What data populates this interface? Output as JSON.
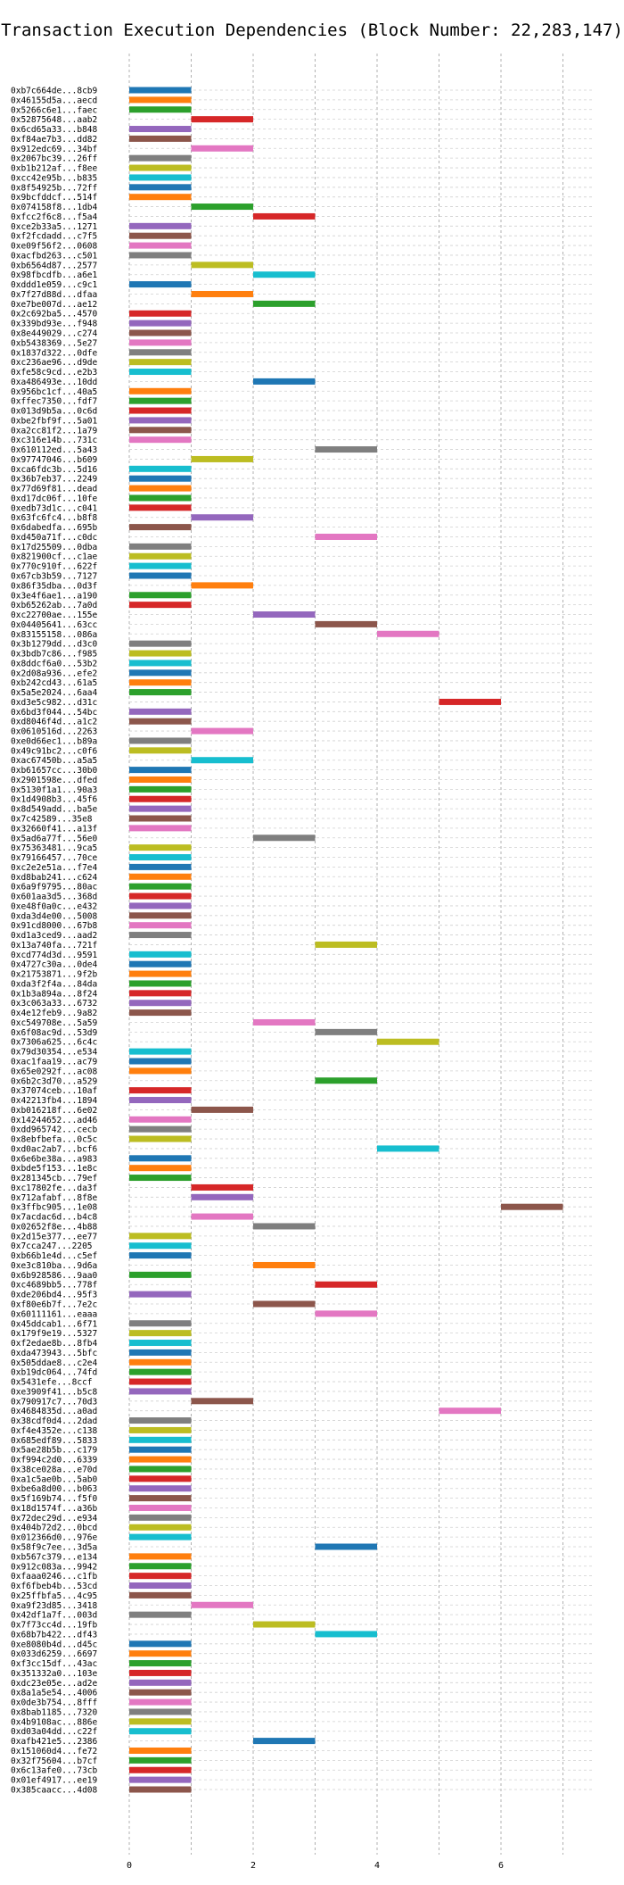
{
  "chart_data": {
    "type": "bar",
    "orientation": "horizontal",
    "title": "Transaction Execution Dependencies (Block Number: 22,283,147)",
    "xlabel": "",
    "ylabel": "",
    "xlim": [
      0,
      7.5
    ],
    "xticks": [
      0,
      2,
      4,
      6
    ],
    "grid": true,
    "colors": [
      "#1f77b4",
      "#ff7f0e",
      "#2ca02c",
      "#d62728",
      "#9467bd",
      "#8c564b",
      "#e377c2",
      "#7f7f7f",
      "#bcbd22",
      "#17becf"
    ],
    "transactions": [
      {
        "label": "0xb7c664de...8cb9",
        "start": 0,
        "end": 1
      },
      {
        "label": "0x46155d5a...aecd",
        "start": 0,
        "end": 1
      },
      {
        "label": "0x5266c6e1...faec",
        "start": 0,
        "end": 1
      },
      {
        "label": "0x52875648...aab2",
        "start": 1,
        "end": 2
      },
      {
        "label": "0x6cd65a33...b848",
        "start": 0,
        "end": 1
      },
      {
        "label": "0xf84ae7b3...dd82",
        "start": 0,
        "end": 1
      },
      {
        "label": "0x912edc69...34bf",
        "start": 1,
        "end": 2
      },
      {
        "label": "0x2067bc39...26ff",
        "start": 0,
        "end": 1
      },
      {
        "label": "0xb1b212af...f8ee",
        "start": 0,
        "end": 1
      },
      {
        "label": "0xcc42e95b...b835",
        "start": 0,
        "end": 1
      },
      {
        "label": "0x8f54925b...72ff",
        "start": 0,
        "end": 1
      },
      {
        "label": "0x9bcfddcf...514f",
        "start": 0,
        "end": 1
      },
      {
        "label": "0x074158f8...1db4",
        "start": 1,
        "end": 2
      },
      {
        "label": "0xfcc2f6c8...f5a4",
        "start": 2,
        "end": 3
      },
      {
        "label": "0xce2b33a5...1271",
        "start": 0,
        "end": 1
      },
      {
        "label": "0xf2fcdadd...c7f5",
        "start": 0,
        "end": 1
      },
      {
        "label": "0xe09f56f2...0608",
        "start": 0,
        "end": 1
      },
      {
        "label": "0xacfbd263...c501",
        "start": 0,
        "end": 1
      },
      {
        "label": "0xb6564d87...2577",
        "start": 1,
        "end": 2
      },
      {
        "label": "0x98fbcdfb...a6e1",
        "start": 2,
        "end": 3
      },
      {
        "label": "0xddd1e059...c9c1",
        "start": 0,
        "end": 1
      },
      {
        "label": "0x7f27d88d...dfaa",
        "start": 1,
        "end": 2
      },
      {
        "label": "0xe7be007d...ae12",
        "start": 2,
        "end": 3
      },
      {
        "label": "0x2c692ba5...4570",
        "start": 0,
        "end": 1
      },
      {
        "label": "0x339bd93e...f948",
        "start": 0,
        "end": 1
      },
      {
        "label": "0x8e449029...c274",
        "start": 0,
        "end": 1
      },
      {
        "label": "0xb5438369...5e27",
        "start": 0,
        "end": 1
      },
      {
        "label": "0x1837d322...0dfe",
        "start": 0,
        "end": 1
      },
      {
        "label": "0xc236ae96...d9de",
        "start": 0,
        "end": 1
      },
      {
        "label": "0xfe58c9cd...e2b3",
        "start": 0,
        "end": 1
      },
      {
        "label": "0xa486493e...10dd",
        "start": 2,
        "end": 3
      },
      {
        "label": "0x956bc1cf...40a5",
        "start": 0,
        "end": 1
      },
      {
        "label": "0xffec7350...fdf7",
        "start": 0,
        "end": 1
      },
      {
        "label": "0x013d9b5a...0c6d",
        "start": 0,
        "end": 1
      },
      {
        "label": "0xbe2fbf9f...5a01",
        "start": 0,
        "end": 1
      },
      {
        "label": "0xa2cc81f2...1a79",
        "start": 0,
        "end": 1
      },
      {
        "label": "0xc316e14b...731c",
        "start": 0,
        "end": 1
      },
      {
        "label": "0x610112ed...5a43",
        "start": 3,
        "end": 4
      },
      {
        "label": "0x97747046...b609",
        "start": 1,
        "end": 2
      },
      {
        "label": "0xca6fdc3b...5d16",
        "start": 0,
        "end": 1
      },
      {
        "label": "0x36b7eb37...2249",
        "start": 0,
        "end": 1
      },
      {
        "label": "0x77d69f81...dead",
        "start": 0,
        "end": 1
      },
      {
        "label": "0xd17dc06f...10fe",
        "start": 0,
        "end": 1
      },
      {
        "label": "0xedb73d1c...c041",
        "start": 0,
        "end": 1
      },
      {
        "label": "0x63fc6fc4...b8f8",
        "start": 1,
        "end": 2
      },
      {
        "label": "0x6dabedfa...695b",
        "start": 0,
        "end": 1
      },
      {
        "label": "0xd450a71f...c0dc",
        "start": 3,
        "end": 4
      },
      {
        "label": "0x17d25509...0dba",
        "start": 0,
        "end": 1
      },
      {
        "label": "0x821900cf...c1ae",
        "start": 0,
        "end": 1
      },
      {
        "label": "0x770c910f...622f",
        "start": 0,
        "end": 1
      },
      {
        "label": "0x67cb3b59...7127",
        "start": 0,
        "end": 1
      },
      {
        "label": "0x86f35dba...0d3f",
        "start": 1,
        "end": 2
      },
      {
        "label": "0x3e4f6ae1...a190",
        "start": 0,
        "end": 1
      },
      {
        "label": "0xb65262ab...7a0d",
        "start": 0,
        "end": 1
      },
      {
        "label": "0xc22700ae...155e",
        "start": 2,
        "end": 3
      },
      {
        "label": "0x04405641...63cc",
        "start": 3,
        "end": 4
      },
      {
        "label": "0x83155158...086a",
        "start": 4,
        "end": 5
      },
      {
        "label": "0x3b1279dd...d3c0",
        "start": 0,
        "end": 1
      },
      {
        "label": "0x3bdb7c86...f985",
        "start": 0,
        "end": 1
      },
      {
        "label": "0x8ddcf6a0...53b2",
        "start": 0,
        "end": 1
      },
      {
        "label": "0x2d08a936...efe2",
        "start": 0,
        "end": 1
      },
      {
        "label": "0xb242cd43...61a5",
        "start": 0,
        "end": 1
      },
      {
        "label": "0x5a5e2024...6aa4",
        "start": 0,
        "end": 1
      },
      {
        "label": "0xd3e5c982...d31c",
        "start": 5,
        "end": 6
      },
      {
        "label": "0x6bd3f044...54bc",
        "start": 0,
        "end": 1
      },
      {
        "label": "0xd8046f4d...a1c2",
        "start": 0,
        "end": 1
      },
      {
        "label": "0x0610516d...2263",
        "start": 1,
        "end": 2
      },
      {
        "label": "0xe0d66ec1...b89a",
        "start": 0,
        "end": 1
      },
      {
        "label": "0x49c91bc2...c0f6",
        "start": 0,
        "end": 1
      },
      {
        "label": "0xac67450b...a5a5",
        "start": 1,
        "end": 2
      },
      {
        "label": "0xb61657cc...30b0",
        "start": 0,
        "end": 1
      },
      {
        "label": "0x2901598e...dfed",
        "start": 0,
        "end": 1
      },
      {
        "label": "0x5130f1a1...90a3",
        "start": 0,
        "end": 1
      },
      {
        "label": "0x1d4908b3...45f6",
        "start": 0,
        "end": 1
      },
      {
        "label": "0x8d549add...ba5e",
        "start": 0,
        "end": 1
      },
      {
        "label": "0x7c42589...35e8",
        "start": 0,
        "end": 1
      },
      {
        "label": "0x32660f41...a13f",
        "start": 0,
        "end": 1
      },
      {
        "label": "0x5ad6a77f...56e0",
        "start": 2,
        "end": 3
      },
      {
        "label": "0x75363481...9ca5",
        "start": 0,
        "end": 1
      },
      {
        "label": "0x79166457...70ce",
        "start": 0,
        "end": 1
      },
      {
        "label": "0xc2e2e51a...f7e4",
        "start": 0,
        "end": 1
      },
      {
        "label": "0xd8bab241...c624",
        "start": 0,
        "end": 1
      },
      {
        "label": "0x6a9f9795...80ac",
        "start": 0,
        "end": 1
      },
      {
        "label": "0x601aa3d5...368d",
        "start": 0,
        "end": 1
      },
      {
        "label": "0xe48f0a0c...e432",
        "start": 0,
        "end": 1
      },
      {
        "label": "0xda3d4e00...5008",
        "start": 0,
        "end": 1
      },
      {
        "label": "0x91cd8000...67b8",
        "start": 0,
        "end": 1
      },
      {
        "label": "0xd1a3ced9...aad2",
        "start": 0,
        "end": 1
      },
      {
        "label": "0x13a740fa...721f",
        "start": 3,
        "end": 4
      },
      {
        "label": "0xcd774d3d...9591",
        "start": 0,
        "end": 1
      },
      {
        "label": "0x4727c30a...0de4",
        "start": 0,
        "end": 1
      },
      {
        "label": "0x21753871...9f2b",
        "start": 0,
        "end": 1
      },
      {
        "label": "0xda3f2f4a...84da",
        "start": 0,
        "end": 1
      },
      {
        "label": "0x1b3a894a...8f24",
        "start": 0,
        "end": 1
      },
      {
        "label": "0x3c063a33...6732",
        "start": 0,
        "end": 1
      },
      {
        "label": "0x4e12feb9...9a82",
        "start": 0,
        "end": 1
      },
      {
        "label": "0xc549708e...5a59",
        "start": 2,
        "end": 3
      },
      {
        "label": "0x6f08ac9d...53d9",
        "start": 3,
        "end": 4
      },
      {
        "label": "0x7306a625...6c4c",
        "start": 4,
        "end": 5
      },
      {
        "label": "0x79d30354...e534",
        "start": 0,
        "end": 1
      },
      {
        "label": "0xac1faa19...ac79",
        "start": 0,
        "end": 1
      },
      {
        "label": "0x65e0292f...ac08",
        "start": 0,
        "end": 1
      },
      {
        "label": "0x6b2c3d70...a529",
        "start": 3,
        "end": 4
      },
      {
        "label": "0x37074ceb...10af",
        "start": 0,
        "end": 1
      },
      {
        "label": "0x42213fb4...1894",
        "start": 0,
        "end": 1
      },
      {
        "label": "0xb016218f...6e02",
        "start": 1,
        "end": 2
      },
      {
        "label": "0x14244652...ad46",
        "start": 0,
        "end": 1
      },
      {
        "label": "0xdd965742...cecb",
        "start": 0,
        "end": 1
      },
      {
        "label": "0x8ebfbefa...0c5c",
        "start": 0,
        "end": 1
      },
      {
        "label": "0xd0ac2ab7...bcf6",
        "start": 4,
        "end": 5
      },
      {
        "label": "0x6e6be38a...a983",
        "start": 0,
        "end": 1
      },
      {
        "label": "0xbde5f153...1e8c",
        "start": 0,
        "end": 1
      },
      {
        "label": "0x281345cb...79ef",
        "start": 0,
        "end": 1
      },
      {
        "label": "0xc17802fe...da3f",
        "start": 1,
        "end": 2
      },
      {
        "label": "0x712afabf...8f8e",
        "start": 1,
        "end": 2
      },
      {
        "label": "0x3ffbc905...1e08",
        "start": 6,
        "end": 7
      },
      {
        "label": "0x7acdac6d...b4c8",
        "start": 1,
        "end": 2
      },
      {
        "label": "0x02652f8e...4b88",
        "start": 2,
        "end": 3
      },
      {
        "label": "0x2d15e377...ee77",
        "start": 0,
        "end": 1
      },
      {
        "label": "0x7cca247...2205",
        "start": 0,
        "end": 1
      },
      {
        "label": "0xb66b1e4d...c5ef",
        "start": 0,
        "end": 1
      },
      {
        "label": "0xe3c810ba...9d6a",
        "start": 2,
        "end": 3
      },
      {
        "label": "0x6b928586...9aa0",
        "start": 0,
        "end": 1
      },
      {
        "label": "0xc4689bb5...778f",
        "start": 3,
        "end": 4
      },
      {
        "label": "0xde206bd4...95f3",
        "start": 0,
        "end": 1
      },
      {
        "label": "0xf80e6b7f...7e2c",
        "start": 2,
        "end": 3
      },
      {
        "label": "0x60111161...eaaa",
        "start": 3,
        "end": 4
      },
      {
        "label": "0x45ddcab1...6f71",
        "start": 0,
        "end": 1
      },
      {
        "label": "0x179f9e19...5327",
        "start": 0,
        "end": 1
      },
      {
        "label": "0xf2edae8b...8fb4",
        "start": 0,
        "end": 1
      },
      {
        "label": "0xda473943...5bfc",
        "start": 0,
        "end": 1
      },
      {
        "label": "0x505ddae8...c2e4",
        "start": 0,
        "end": 1
      },
      {
        "label": "0xb19dc064...74fd",
        "start": 0,
        "end": 1
      },
      {
        "label": "0x5431efe...8ccf",
        "start": 0,
        "end": 1
      },
      {
        "label": "0xe3909f41...b5c8",
        "start": 0,
        "end": 1
      },
      {
        "label": "0x790917c7...70d3",
        "start": 1,
        "end": 2
      },
      {
        "label": "0x4684835d...a0ad",
        "start": 5,
        "end": 6
      },
      {
        "label": "0x38cdf0d4...2dad",
        "start": 0,
        "end": 1
      },
      {
        "label": "0xf4e4352e...c138",
        "start": 0,
        "end": 1
      },
      {
        "label": "0x685edf89...5833",
        "start": 0,
        "end": 1
      },
      {
        "label": "0x5ae28b5b...c179",
        "start": 0,
        "end": 1
      },
      {
        "label": "0xf994c2d0...6339",
        "start": 0,
        "end": 1
      },
      {
        "label": "0x38ce028a...e70d",
        "start": 0,
        "end": 1
      },
      {
        "label": "0xa1c5ae0b...5ab0",
        "start": 0,
        "end": 1
      },
      {
        "label": "0xbe6a8d00...b063",
        "start": 0,
        "end": 1
      },
      {
        "label": "0x5f169b74...f5f0",
        "start": 0,
        "end": 1
      },
      {
        "label": "0x18d1574f...a36b",
        "start": 0,
        "end": 1
      },
      {
        "label": "0x72dec29d...e934",
        "start": 0,
        "end": 1
      },
      {
        "label": "0x404b72d2...0bcd",
        "start": 0,
        "end": 1
      },
      {
        "label": "0x012366d0...976e",
        "start": 0,
        "end": 1
      },
      {
        "label": "0x58f9c7ee...3d5a",
        "start": 3,
        "end": 4
      },
      {
        "label": "0xb567c379...e134",
        "start": 0,
        "end": 1
      },
      {
        "label": "0x912c083a...9942",
        "start": 0,
        "end": 1
      },
      {
        "label": "0xfaaa0246...c1fb",
        "start": 0,
        "end": 1
      },
      {
        "label": "0xf6fbeb4b...53cd",
        "start": 0,
        "end": 1
      },
      {
        "label": "0x25ffbfa5...4c95",
        "start": 0,
        "end": 1
      },
      {
        "label": "0xa9f23d85...3418",
        "start": 1,
        "end": 2
      },
      {
        "label": "0x42df1a7f...003d",
        "start": 0,
        "end": 1
      },
      {
        "label": "0x7f73cc4d...19fb",
        "start": 2,
        "end": 3
      },
      {
        "label": "0x68b7b422...df43",
        "start": 3,
        "end": 4
      },
      {
        "label": "0xe8080b4d...d45c",
        "start": 0,
        "end": 1
      },
      {
        "label": "0x033d6259...6697",
        "start": 0,
        "end": 1
      },
      {
        "label": "0xf3cc15df...43ac",
        "start": 0,
        "end": 1
      },
      {
        "label": "0x351332a0...103e",
        "start": 0,
        "end": 1
      },
      {
        "label": "0xdc23e05e...ad2e",
        "start": 0,
        "end": 1
      },
      {
        "label": "0x8a1a5e54...4006",
        "start": 0,
        "end": 1
      },
      {
        "label": "0x0de3b754...8fff",
        "start": 0,
        "end": 1
      },
      {
        "label": "0x8bab1185...7320",
        "start": 0,
        "end": 1
      },
      {
        "label": "0x4b9108ac...886e",
        "start": 0,
        "end": 1
      },
      {
        "label": "0xd03a04dd...c22f",
        "start": 0,
        "end": 1
      },
      {
        "label": "0xafb421e5...2386",
        "start": 2,
        "end": 3
      },
      {
        "label": "0x151060d4...fe72",
        "start": 0,
        "end": 1
      },
      {
        "label": "0x32f75604...b7cf",
        "start": 0,
        "end": 1
      },
      {
        "label": "0x6c13afe0...73cb",
        "start": 0,
        "end": 1
      },
      {
        "label": "0x01ef4917...ee19",
        "start": 0,
        "end": 1
      },
      {
        "label": "0x385caacc...4d08",
        "start": 0,
        "end": 1
      }
    ]
  }
}
